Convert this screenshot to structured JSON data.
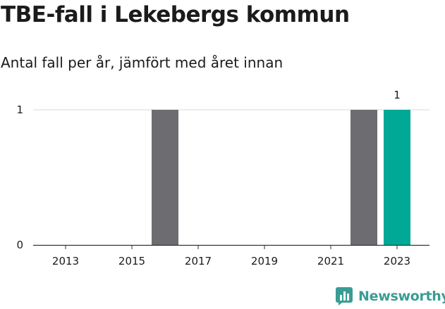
{
  "chart_data": {
    "type": "bar",
    "title": "TBE-fall i Lekebergs kommun",
    "subtitle": "Antal fall per år, jämfört med året innan",
    "categories": [
      "2013",
      "2014",
      "2015",
      "2016",
      "2017",
      "2018",
      "2019",
      "2020",
      "2021",
      "2022",
      "2023"
    ],
    "values": [
      0,
      0,
      0,
      1,
      0,
      0,
      0,
      0,
      0,
      1,
      1
    ],
    "highlight_category": "2023",
    "highlight_value_label": "1",
    "x_ticks": [
      "2013",
      "2015",
      "2017",
      "2019",
      "2021",
      "2023"
    ],
    "y_ticks": [
      "0",
      "1"
    ],
    "ylim": [
      0,
      1
    ],
    "grid": true,
    "colors": {
      "default": "#6d6c71",
      "highlight": "#00a896"
    }
  },
  "brand": {
    "name": "Newsworthy",
    "icon": "bar-chart-logo-icon",
    "color": "#3a9d94"
  }
}
